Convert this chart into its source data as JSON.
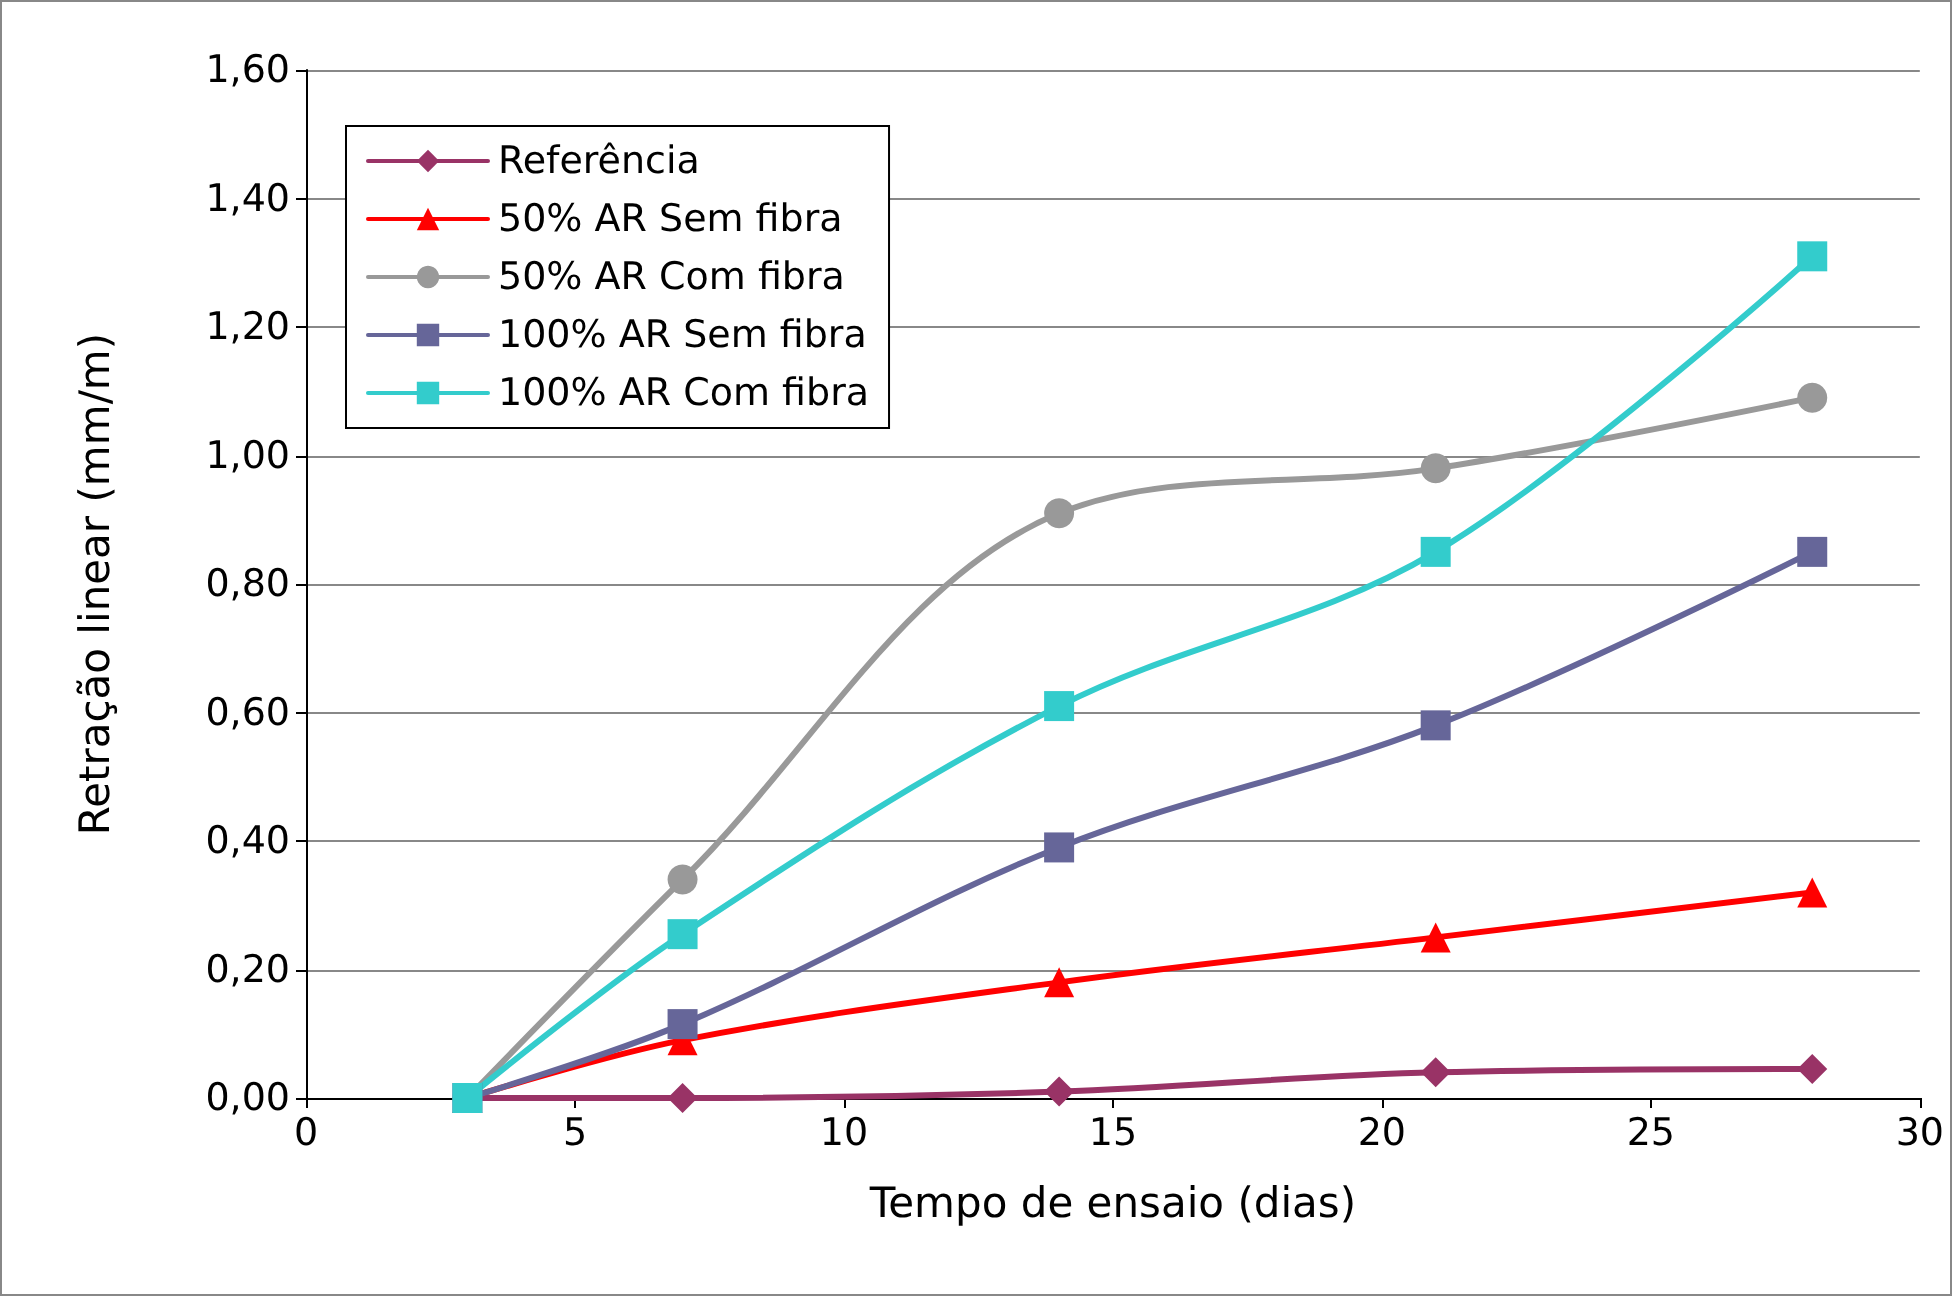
{
  "chart_data": {
    "type": "line",
    "xlabel": "Tempo de ensaio (dias)",
    "ylabel": "Retração linear (mm/m)",
    "xlim": [
      0,
      30
    ],
    "xticks": [
      0,
      5,
      10,
      15,
      20,
      25,
      30
    ],
    "ylim": [
      0,
      1.6
    ],
    "yticks": [
      {
        "value": 0,
        "label": "0,00"
      },
      {
        "value": 0.2,
        "label": "0,20"
      },
      {
        "value": 0.4,
        "label": "0,40"
      },
      {
        "value": 0.6,
        "label": "0,60"
      },
      {
        "value": 0.8,
        "label": "0,80"
      },
      {
        "value": 1,
        "label": "1,00"
      },
      {
        "value": 1.2,
        "label": "1,20"
      },
      {
        "value": 1.4,
        "label": "1,40"
      },
      {
        "value": 1.6,
        "label": "1,60"
      }
    ],
    "grid": "y",
    "legend": "top left",
    "x": [
      3,
      7,
      14,
      21,
      28
    ],
    "series": [
      {
        "name": "Referência",
        "color": "#993366",
        "marker": "diamond",
        "values": [
          0,
          0,
          0.01,
          0.04,
          0.045
        ]
      },
      {
        "name": "50% AR Sem fibra",
        "color": "#ff0000",
        "marker": "triangle",
        "values": [
          0,
          0.09,
          0.18,
          0.25,
          0.32
        ]
      },
      {
        "name": "50% AR Com fibra",
        "color": "#999999",
        "marker": "circle",
        "values": [
          0,
          0.34,
          0.91,
          0.98,
          1.09
        ]
      },
      {
        "name": "100% AR Sem fibra",
        "color": "#666699",
        "marker": "square",
        "values": [
          0,
          0.115,
          0.39,
          0.58,
          0.85
        ]
      },
      {
        "name": "100% AR Com fibra",
        "color": "#33cccc",
        "marker": "square",
        "values": [
          0,
          0.255,
          0.61,
          0.85,
          1.31
        ]
      }
    ]
  }
}
